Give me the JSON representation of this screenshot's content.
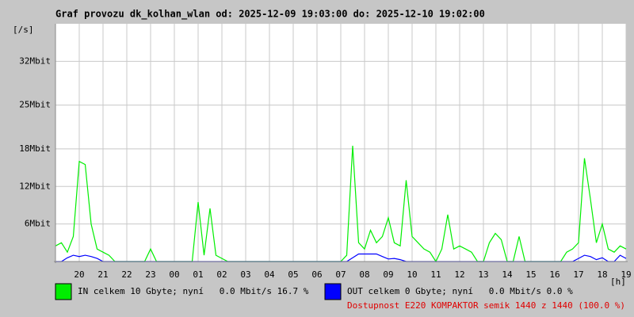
{
  "chart_data": {
    "type": "line",
    "title": "Graf provozu dk_kolhan_wlan od: 2025-12-09 19:03:00 do: 2025-12-10 19:02:00",
    "y_unit": "[/s]",
    "x_unit": "[h]",
    "x": [
      0,
      0.25,
      0.5,
      0.75,
      1,
      1.25,
      1.5,
      1.75,
      2,
      2.25,
      2.5,
      2.75,
      3,
      3.25,
      3.5,
      3.75,
      4,
      4.25,
      4.5,
      4.75,
      5,
      5.25,
      5.5,
      5.75,
      6,
      6.25,
      6.5,
      6.75,
      7,
      7.25,
      7.5,
      7.75,
      8,
      8.25,
      8.5,
      8.75,
      9,
      9.25,
      9.5,
      9.75,
      10,
      10.25,
      10.5,
      10.75,
      11,
      11.25,
      11.5,
      11.75,
      12,
      12.25,
      12.5,
      12.75,
      13,
      13.25,
      13.5,
      13.75,
      14,
      14.25,
      14.5,
      14.75,
      15,
      15.25,
      15.5,
      15.75,
      16,
      16.25,
      16.5,
      16.75,
      17,
      17.25,
      17.5,
      17.75,
      18,
      18.25,
      18.5,
      18.75,
      19,
      19.25,
      19.5,
      19.75,
      20,
      20.25,
      20.5,
      20.75,
      21,
      21.25,
      21.5,
      21.75,
      22,
      22.25,
      22.5,
      22.75,
      23,
      23.25,
      23.5,
      23.75,
      24
    ],
    "series": [
      {
        "name": "IN celkem 10 Gbyte; nyní   0.0 Mbit/s 16.7 %",
        "color": "#00ee00",
        "values": [
          2.5,
          3,
          1.5,
          4,
          16,
          15.5,
          6,
          2,
          1.5,
          1,
          0,
          0,
          0,
          0,
          0,
          0,
          2,
          0,
          0,
          0,
          0,
          0,
          0,
          0,
          9.5,
          1,
          8.5,
          1,
          0.5,
          0,
          0,
          0,
          0,
          0,
          0,
          0,
          0,
          0,
          0,
          0,
          0,
          0,
          0,
          0,
          0,
          0,
          0,
          0,
          0,
          1,
          18.5,
          3,
          2,
          5,
          3,
          4,
          7,
          3,
          2.5,
          13,
          4,
          3,
          2,
          1.5,
          0,
          2,
          7.5,
          2,
          2.5,
          2,
          1.5,
          0,
          0,
          3,
          4.5,
          3.5,
          0,
          0,
          4,
          0,
          0,
          0,
          0,
          0,
          0,
          0,
          1.5,
          2,
          3,
          16.5,
          10,
          3,
          6,
          2,
          1.5,
          2.5,
          2
        ]
      },
      {
        "name": "OUT celkem 0 Gbyte; nyní   0.0 Mbit/s 0.0 %",
        "color": "#0000ff",
        "values": [
          0,
          0,
          0.6,
          1,
          0.8,
          1,
          0.8,
          0.5,
          0,
          0,
          0,
          0,
          0,
          0,
          0,
          0,
          0,
          0,
          0,
          0,
          0,
          0,
          0,
          0,
          0,
          0,
          0,
          0,
          0,
          0,
          0,
          0,
          0,
          0,
          0,
          0,
          0,
          0,
          0,
          0,
          0,
          0,
          0,
          0,
          0,
          0,
          0,
          0,
          0,
          0,
          0.6,
          1.2,
          1.2,
          1.2,
          1.2,
          0.8,
          0.4,
          0.5,
          0.3,
          0,
          0,
          0,
          0,
          0,
          0,
          0,
          0,
          0,
          0,
          0,
          0,
          0,
          0,
          0,
          0,
          0,
          0,
          0,
          0,
          0,
          0,
          0,
          0,
          0,
          0,
          0,
          0,
          0,
          0.5,
          1,
          0.8,
          0.3,
          0.6,
          0,
          0,
          1,
          0.5
        ]
      }
    ],
    "availability": "Dostupnost E220 KOMPAKTOR semik 1440 z 1440 (100.0 %)",
    "ylim": [
      0,
      38
    ],
    "yticks": [
      {
        "value": 6,
        "label": "6Mbit"
      },
      {
        "value": 12,
        "label": "12Mbit"
      },
      {
        "value": 18,
        "label": "18Mbit"
      },
      {
        "value": 25,
        "label": "25Mbit"
      },
      {
        "value": 32,
        "label": "32Mbit"
      }
    ],
    "xlim": [
      0,
      24
    ],
    "xticks": [
      {
        "value": 1,
        "label": "20"
      },
      {
        "value": 2,
        "label": "21"
      },
      {
        "value": 3,
        "label": "22"
      },
      {
        "value": 4,
        "label": "23"
      },
      {
        "value": 5,
        "label": "00"
      },
      {
        "value": 6,
        "label": "01"
      },
      {
        "value": 7,
        "label": "02"
      },
      {
        "value": 8,
        "label": "03"
      },
      {
        "value": 9,
        "label": "04"
      },
      {
        "value": 10,
        "label": "05"
      },
      {
        "value": 11,
        "label": "06"
      },
      {
        "value": 12,
        "label": "07"
      },
      {
        "value": 13,
        "label": "08"
      },
      {
        "value": 14,
        "label": "09"
      },
      {
        "value": 15,
        "label": "10"
      },
      {
        "value": 16,
        "label": "11"
      },
      {
        "value": 17,
        "label": "12"
      },
      {
        "value": 18,
        "label": "13"
      },
      {
        "value": 19,
        "label": "14"
      },
      {
        "value": 20,
        "label": "15"
      },
      {
        "value": 21,
        "label": "16"
      },
      {
        "value": 22,
        "label": "17"
      },
      {
        "value": 23,
        "label": "18"
      },
      {
        "value": 24,
        "label": "19"
      }
    ],
    "grid": true
  }
}
